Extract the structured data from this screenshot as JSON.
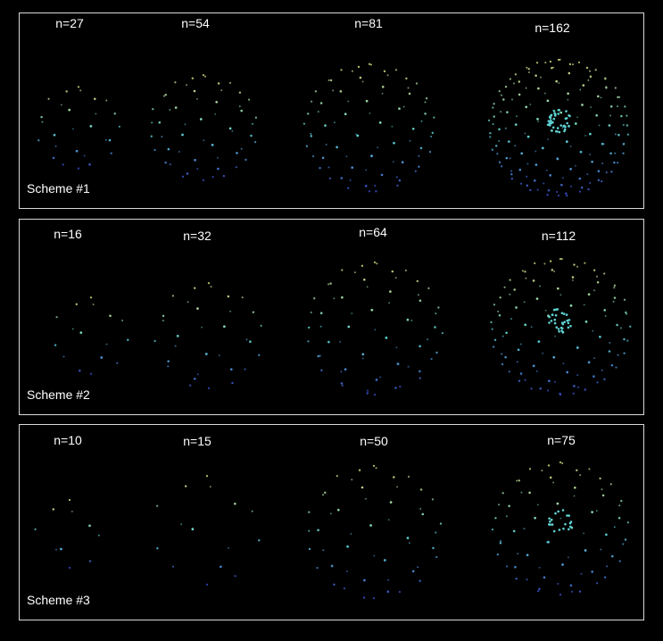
{
  "colors": {
    "background": "#000000",
    "border": "#d9d9d9",
    "text": "#ffffff",
    "point_top": "#e6e680",
    "point_mid": "#5fd3d3",
    "point_bottom": "#3b4fd6"
  },
  "schemes": [
    {
      "label": "Scheme #1",
      "n_labels": [
        "n=27",
        "n=54",
        "n=81",
        "n=162"
      ]
    },
    {
      "label": "Scheme #2",
      "n_labels": [
        "n=16",
        "n=32",
        "n=64",
        "n=112"
      ]
    },
    {
      "label": "Scheme #3",
      "n_labels": [
        "n=10",
        "n=15",
        "n=50",
        "n=75"
      ]
    }
  ]
}
